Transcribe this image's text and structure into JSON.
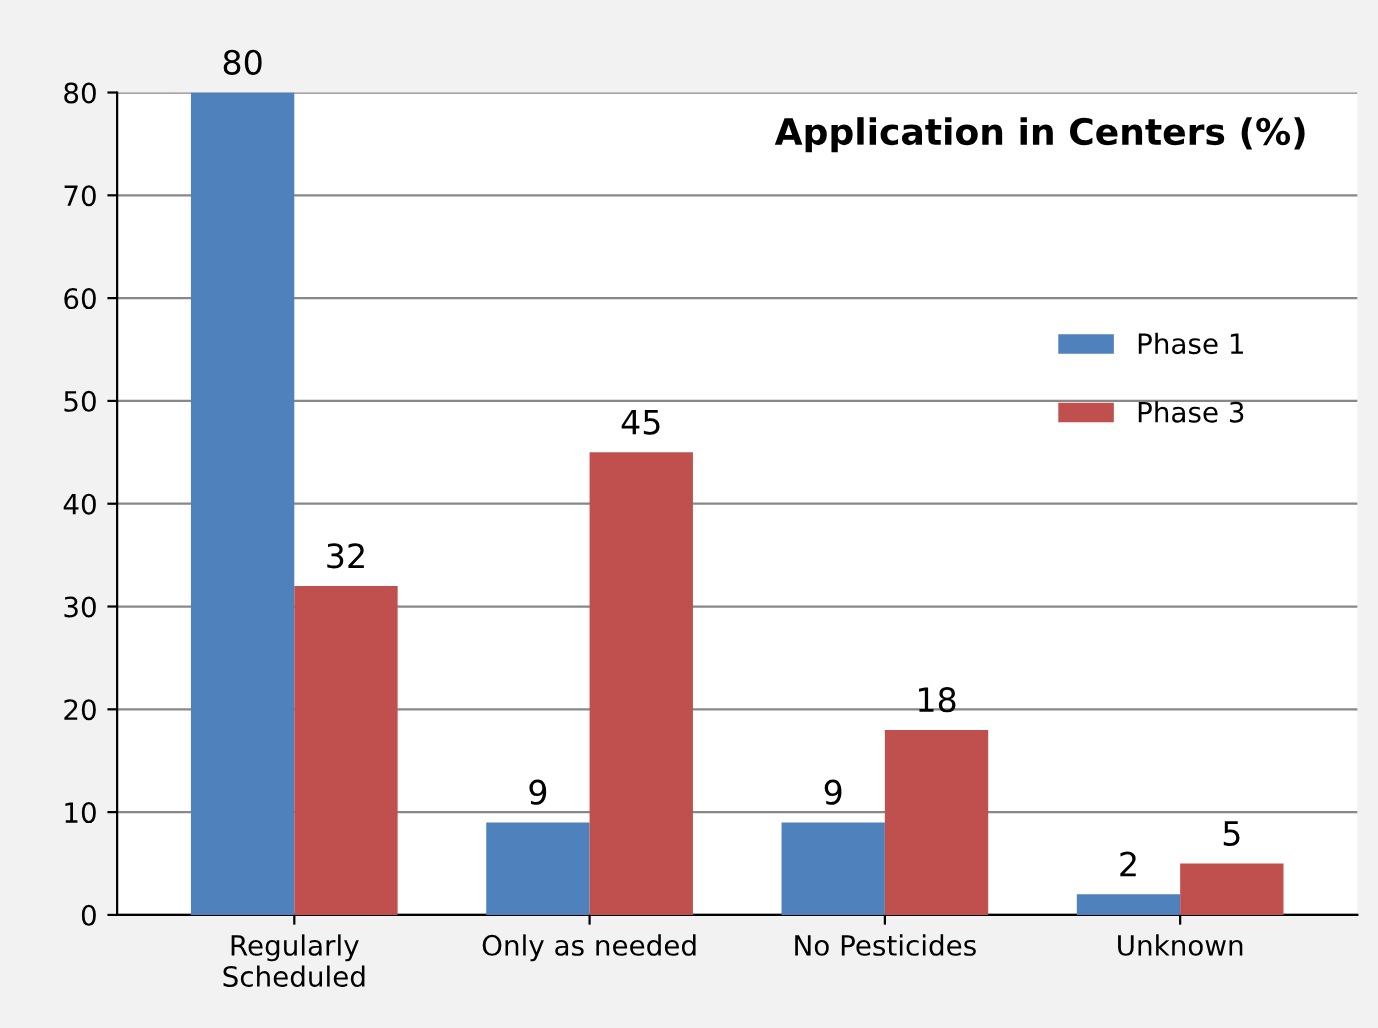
{
  "chart_data": {
    "type": "bar",
    "title": "Application in Centers (%)",
    "categories": [
      "Regularly\nScheduled",
      "Only as needed",
      "No Pesticides",
      "Unknown"
    ],
    "series": [
      {
        "name": "Phase 1",
        "color": "#4f81bd",
        "values": [
          80,
          9,
          9,
          2
        ]
      },
      {
        "name": "Phase 3",
        "color": "#c0504d",
        "values": [
          32,
          45,
          18,
          5
        ]
      }
    ],
    "ylim": [
      0,
      80
    ],
    "yticks": [
      0,
      10,
      20,
      30,
      40,
      50,
      60,
      70,
      80
    ],
    "grid": "y",
    "legend": "right",
    "data_labels": true
  }
}
